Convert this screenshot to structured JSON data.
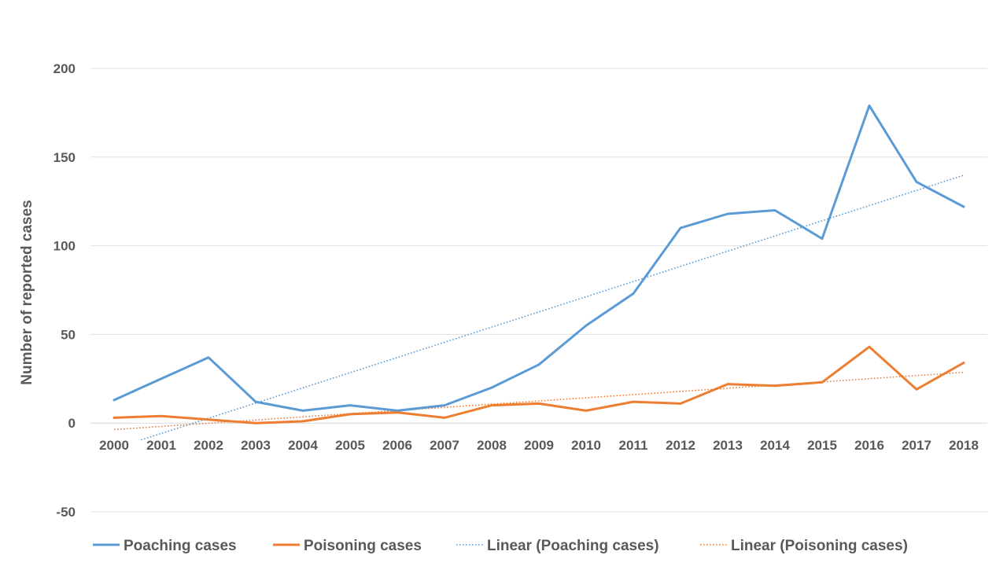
{
  "chart_data": {
    "type": "line",
    "title": "",
    "xlabel": "",
    "ylabel": "Number of reported cases",
    "ylim": [
      -50,
      200
    ],
    "yticks": [
      -50,
      0,
      50,
      100,
      150,
      200
    ],
    "grid": true,
    "legend_position": "bottom",
    "categories": [
      "2000",
      "2001",
      "2002",
      "2003",
      "2004",
      "2005",
      "2006",
      "2007",
      "2008",
      "2009",
      "2010",
      "2011",
      "2012",
      "2013",
      "2014",
      "2015",
      "2016",
      "2017",
      "2018"
    ],
    "series": [
      {
        "name": "Poaching cases",
        "color": "#5b9bd5",
        "style": "solid",
        "values": [
          13,
          25,
          37,
          12,
          7,
          10,
          7,
          10,
          20,
          33,
          55,
          73,
          110,
          118,
          120,
          104,
          179,
          136,
          122
        ]
      },
      {
        "name": "Poisoning cases",
        "color": "#ed7d31",
        "style": "solid",
        "values": [
          3,
          4,
          2,
          0,
          1,
          5,
          6,
          3,
          10,
          11,
          7,
          12,
          11,
          22,
          21,
          23,
          43,
          19,
          34
        ]
      },
      {
        "name": "Linear (Poaching cases)",
        "color": "#5b9bd5",
        "style": "dotted",
        "trendline_of": "Poaching cases"
      },
      {
        "name": "Linear (Poisoning cases)",
        "color": "#ed7d31",
        "style": "dotted",
        "trendline_of": "Poisoning cases"
      }
    ]
  }
}
